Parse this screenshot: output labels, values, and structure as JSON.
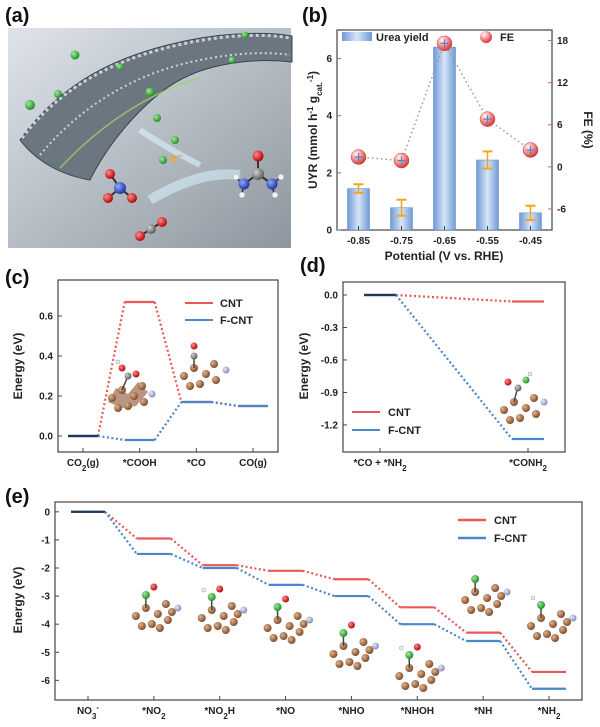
{
  "panels": {
    "a": {
      "letter": "(a)"
    },
    "b": {
      "letter": "(b)"
    },
    "c": {
      "letter": "(c)"
    },
    "d": {
      "letter": "(d)"
    },
    "e": {
      "letter": "(e)"
    }
  },
  "colors": {
    "cnt": "#e8585a",
    "fcnt": "#4a86c8",
    "baseline": "#1f3a5f",
    "bar": "#9bbbe6",
    "error": "#f2a51c",
    "uyr_axis": "#4a86c8",
    "fe_axis": "#e8585a"
  },
  "chart_data": [
    {
      "panel": "b",
      "type": "bar",
      "categories": [
        "-0.85",
        "-0.75",
        "-0.65",
        "-0.55",
        "-0.45"
      ],
      "xlabel": "Potential (V vs. RHE)",
      "ylabel_html": [
        "UYR (mmol h",
        "-1",
        " g",
        "cat.",
        "-1",
        ")"
      ],
      "y2label": "FE (%)",
      "ylim": [
        0,
        7
      ],
      "yticks": [
        0,
        2,
        4,
        6
      ],
      "y2lim": [
        -9,
        19.5
      ],
      "y2ticks": [
        -6,
        0,
        6,
        12,
        18
      ],
      "series": [
        {
          "name": "Urea yield",
          "axis": "left",
          "values": [
            1.45,
            0.78,
            6.4,
            2.45,
            0.6
          ],
          "errors": [
            0.15,
            0.28,
            0.08,
            0.3,
            0.25
          ]
        },
        {
          "name": "FE",
          "axis": "right",
          "style": "dotted-markers",
          "values": [
            1.4,
            0.9,
            17.6,
            6.8,
            2.4
          ]
        }
      ],
      "legend": [
        "Urea yield",
        "FE"
      ]
    },
    {
      "panel": "c",
      "type": "line",
      "categories": [
        "CO2(g)",
        "*COOH",
        "*CO",
        "CO(g)"
      ],
      "xlabels_html": [
        [
          "CO",
          "2",
          "(g)"
        ],
        [
          "*COOH"
        ],
        [
          "*CO"
        ],
        [
          "CO(g)"
        ]
      ],
      "ylabel": "Energy (eV)",
      "ylim": [
        -0.08,
        0.78
      ],
      "yticks": [
        "0.0",
        "0.2",
        "0.4",
        "0.6"
      ],
      "series": [
        {
          "name": "CNT",
          "values": [
            0.0,
            0.67,
            0.17,
            0.15
          ]
        },
        {
          "name": "F-CNT",
          "values": [
            0.0,
            -0.02,
            0.17,
            0.15
          ]
        }
      ],
      "legend": [
        "CNT",
        "F-CNT"
      ]
    },
    {
      "panel": "d",
      "type": "line",
      "categories": [
        "*CO + *NH2",
        "*CONH2"
      ],
      "xlabels_html": [
        [
          "*CO + *NH",
          "2",
          ""
        ],
        [
          "*CONH",
          "2",
          ""
        ]
      ],
      "ylabel": "Energy (eV)",
      "ylim": [
        -1.45,
        0.12
      ],
      "yticks": [
        "0.0",
        "-0.3",
        "-0.6",
        "-0.9",
        "-1.2"
      ],
      "series": [
        {
          "name": "CNT",
          "values": [
            0.0,
            -0.06
          ]
        },
        {
          "name": "F-CNT",
          "values": [
            0.0,
            -1.33
          ]
        }
      ],
      "legend": [
        "CNT",
        "F-CNT"
      ]
    },
    {
      "panel": "e",
      "type": "line",
      "categories": [
        "NO3-",
        "*NO2",
        "*NO2H",
        "*NO",
        "*NHO",
        "*NHOH",
        "*NH",
        "*NH2"
      ],
      "xlabels_html": [
        [
          "NO",
          "3",
          "-"
        ],
        [
          "*NO",
          "2",
          ""
        ],
        [
          "*NO",
          "2",
          "H"
        ],
        [
          "*NO"
        ],
        [
          "*NHO"
        ],
        [
          "*NHOH"
        ],
        [
          "*NH"
        ],
        [
          "*NH",
          "2",
          ""
        ]
      ],
      "ylabel": "Energy (eV)",
      "ylim": [
        -6.7,
        0.35
      ],
      "yticks": [
        "0",
        "-1",
        "-2",
        "-3",
        "-4",
        "-5",
        "-6"
      ],
      "series": [
        {
          "name": "CNT",
          "values": [
            0.0,
            -0.95,
            -1.9,
            -2.1,
            -2.4,
            -3.4,
            -4.3,
            -5.7
          ]
        },
        {
          "name": "F-CNT",
          "values": [
            0.0,
            -1.5,
            -2.0,
            -2.6,
            -3.0,
            -4.0,
            -4.6,
            -6.3
          ]
        }
      ],
      "legend": [
        "CNT",
        "F-CNT"
      ]
    }
  ]
}
